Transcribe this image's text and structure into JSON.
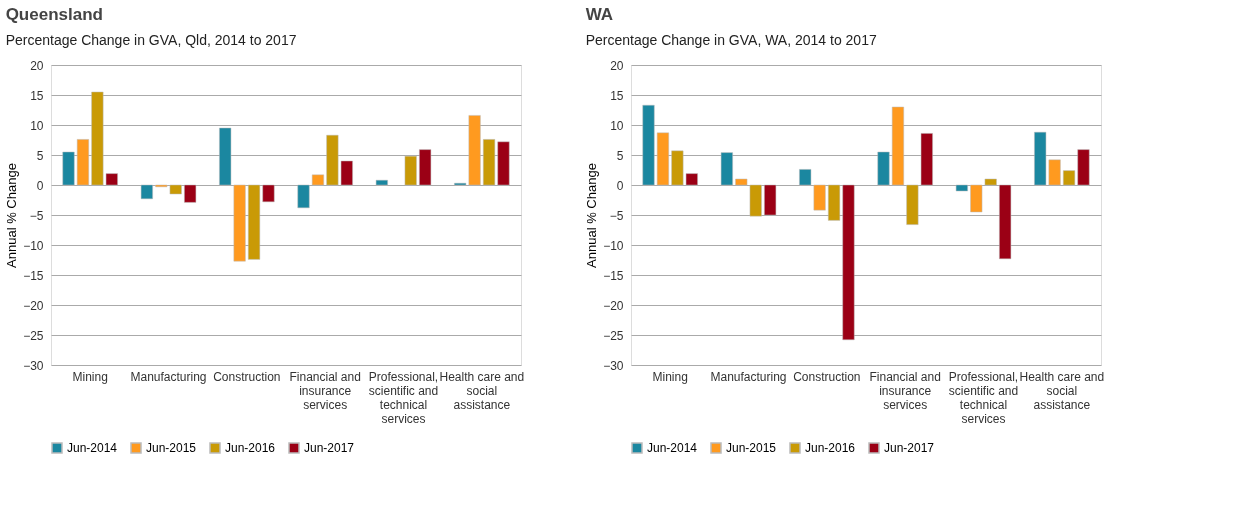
{
  "chart_data": [
    {
      "type": "bar",
      "title": "Queensland",
      "subtitle": "Percentage Change in GVA, Qld, 2014 to 2017",
      "ylabel": "Annual % Change",
      "categories": [
        "Mining",
        "Manufacturing",
        "Construction",
        "Financial and insurance services",
        "Professional, scientific and technical services",
        "Health care and social assistance"
      ],
      "ylim": [
        -30,
        20
      ],
      "yticks": [
        -30,
        -25,
        -20,
        -15,
        -10,
        -5,
        0,
        5,
        10,
        15,
        20
      ],
      "grid": "y",
      "legend": "bottom",
      "series": [
        {
          "name": "Jun-2014",
          "color": "#1b87a0",
          "values": [
            5.5,
            -2.3,
            9.5,
            -3.8,
            0.8,
            0.3
          ]
        },
        {
          "name": "Jun-2015",
          "color": "#ff9a1f",
          "values": [
            7.6,
            -0.3,
            -12.7,
            1.7,
            null,
            11.6
          ]
        },
        {
          "name": "Jun-2016",
          "color": "#c99a06",
          "values": [
            15.5,
            -1.5,
            -12.4,
            8.3,
            4.8,
            7.6
          ]
        },
        {
          "name": "Jun-2017",
          "color": "#9b0015",
          "values": [
            1.9,
            -2.9,
            -2.8,
            4.0,
            5.9,
            7.2
          ]
        }
      ]
    },
    {
      "type": "bar",
      "title": "WA",
      "subtitle": "Percentage Change in GVA, WA, 2014 to 2017",
      "ylabel": "Annual % Change",
      "categories": [
        "Mining",
        "Manufacturing",
        "Construction",
        "Financial and insurance services",
        "Professional, scientific and technical services",
        "Health care and social assistance"
      ],
      "ylim": [
        -30,
        20
      ],
      "yticks": [
        -30,
        -25,
        -20,
        -15,
        -10,
        -5,
        0,
        5,
        10,
        15,
        20
      ],
      "grid": "y",
      "legend": "bottom",
      "series": [
        {
          "name": "Jun-2014",
          "color": "#1b87a0",
          "values": [
            13.3,
            5.4,
            2.6,
            5.5,
            -1.0,
            8.8
          ]
        },
        {
          "name": "Jun-2015",
          "color": "#ff9a1f",
          "values": [
            8.7,
            1.0,
            -4.2,
            13.0,
            -4.5,
            4.2
          ]
        },
        {
          "name": "Jun-2016",
          "color": "#c99a06",
          "values": [
            5.7,
            -5.2,
            -5.9,
            -6.6,
            1.0,
            2.4
          ]
        },
        {
          "name": "Jun-2017",
          "color": "#9b0015",
          "values": [
            1.9,
            -5.0,
            -25.8,
            8.6,
            -12.3,
            5.9
          ]
        }
      ]
    }
  ]
}
